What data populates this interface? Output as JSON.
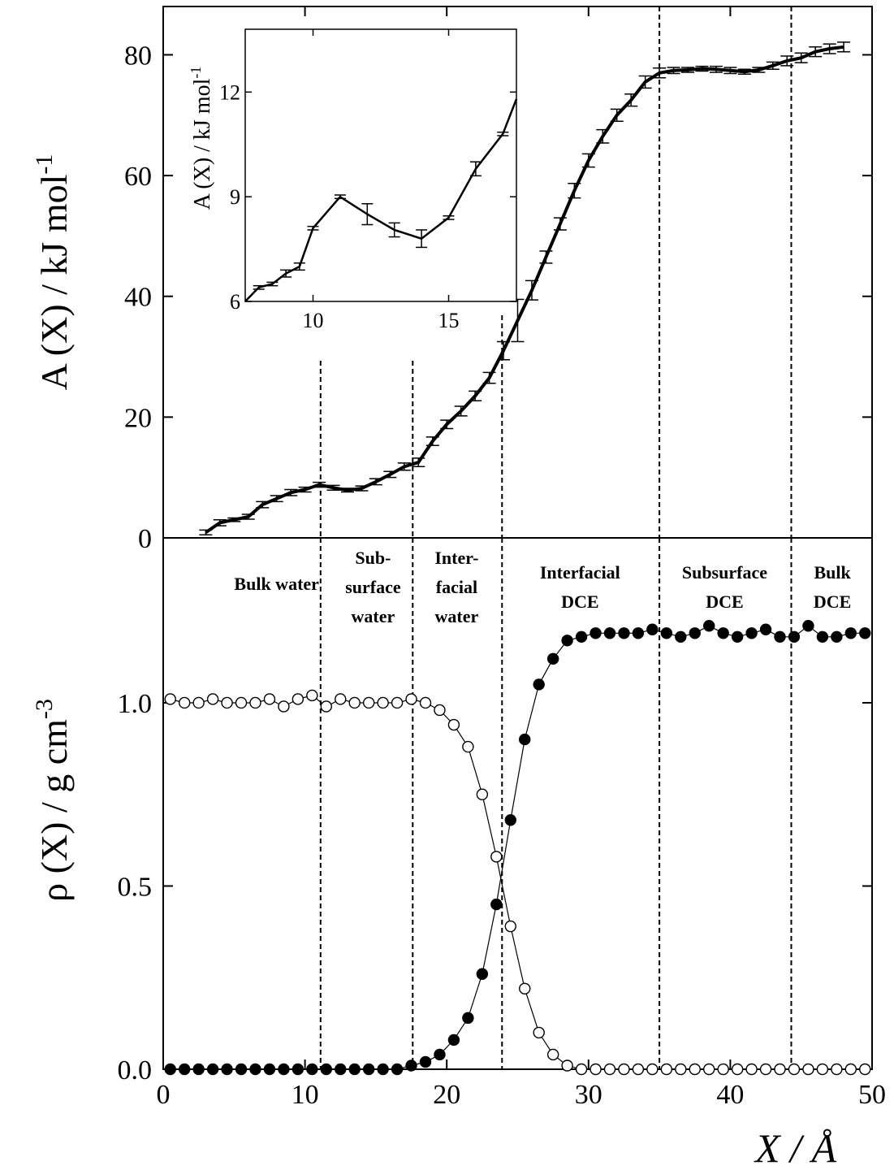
{
  "chart_data": [
    {
      "type": "line",
      "panel": "top",
      "ylabel": "A (X) / kJ mol",
      "ylabel_superscript": "-1",
      "xlim": [
        0,
        50
      ],
      "ylim": [
        0,
        88
      ],
      "yticks": [
        "0",
        "20",
        "40",
        "60",
        "80"
      ],
      "grid": false,
      "series": [
        {
          "x": [
            3,
            4,
            5,
            6,
            7,
            8,
            9,
            10,
            11,
            12,
            13,
            14,
            15,
            16,
            17,
            18,
            19,
            20,
            21,
            22,
            23,
            24,
            25,
            26,
            27,
            28,
            29,
            30,
            31,
            32,
            33,
            34,
            35,
            36,
            37,
            38,
            39,
            40,
            41,
            42,
            43,
            44,
            45,
            46,
            47,
            48
          ],
          "y": [
            0.9,
            2.5,
            3.0,
            3.5,
            5.5,
            6.5,
            7.5,
            8.0,
            8.8,
            8.3,
            7.9,
            8.2,
            9.3,
            10.5,
            11.8,
            12.5,
            16.0,
            18.8,
            21.0,
            23.5,
            26.5,
            31.0,
            36.0,
            41.0,
            46.5,
            52.0,
            57.5,
            62.5,
            66.5,
            70.0,
            72.5,
            75.5,
            77.0,
            77.4,
            77.5,
            77.7,
            77.6,
            77.4,
            77.2,
            77.5,
            78.2,
            79.0,
            79.5,
            80.5,
            81.0,
            81.3
          ],
          "err": [
            0.4,
            0.5,
            0.3,
            0.4,
            0.5,
            0.5,
            0.5,
            0.4,
            0.4,
            0.4,
            0.3,
            0.4,
            0.5,
            0.5,
            0.6,
            0.7,
            0.7,
            0.7,
            0.8,
            0.8,
            0.9,
            1.5,
            3.5,
            1.6,
            1.0,
            1.0,
            1.2,
            1.1,
            1.1,
            1.0,
            1.0,
            1.0,
            0.8,
            0.5,
            0.4,
            0.4,
            0.5,
            0.5,
            0.4,
            0.4,
            0.6,
            0.8,
            0.8,
            0.8,
            0.8,
            0.8
          ]
        }
      ]
    },
    {
      "type": "line",
      "panel": "inset",
      "ylabel": "A (X) / kJ mol",
      "ylabel_superscript": "-1",
      "xlim": [
        7.5,
        17.5
      ],
      "ylim": [
        6,
        13.8
      ],
      "xticks": [
        "10",
        "15"
      ],
      "yticks": [
        "6",
        "9",
        "12"
      ],
      "series": [
        {
          "x": [
            7.5,
            8.0,
            8.5,
            9.0,
            9.5,
            10.0,
            11.0,
            12.0,
            13.0,
            14.0,
            15.0,
            16.0,
            17.0,
            17.5
          ],
          "y": [
            6.0,
            6.4,
            6.5,
            6.8,
            7.0,
            8.1,
            9.0,
            8.5,
            8.05,
            7.8,
            8.4,
            9.8,
            10.8,
            11.8
          ],
          "err": [
            0.0,
            0.05,
            0.05,
            0.1,
            0.1,
            0.05,
            0.05,
            0.3,
            0.2,
            0.25,
            0.05,
            0.2,
            0.05,
            0.0
          ]
        }
      ]
    },
    {
      "type": "line",
      "panel": "bottom",
      "xlabel": "X / Å",
      "ylabel": "ρ (X) / g cm",
      "ylabel_superscript": "-3",
      "xlim": [
        0,
        50
      ],
      "ylim": [
        0,
        1.45
      ],
      "xticks": [
        "0",
        "10",
        "20",
        "30",
        "40",
        "50"
      ],
      "yticks": [
        "0.0",
        "0.5",
        "1.0"
      ],
      "region_labels": [
        {
          "x": 8.0,
          "lines": [
            "Bulk water"
          ]
        },
        {
          "x": 14.8,
          "lines": [
            "Sub-",
            "surface",
            "water"
          ]
        },
        {
          "x": 20.7,
          "lines": [
            "Inter-",
            "facial",
            "water"
          ]
        },
        {
          "x": 29.4,
          "lines": [
            "Interfacial",
            "DCE"
          ]
        },
        {
          "x": 39.6,
          "lines": [
            "Subsurface",
            "DCE"
          ]
        },
        {
          "x": 47.2,
          "lines": [
            "Bulk",
            "DCE"
          ]
        }
      ],
      "boundaries": [
        11.1,
        17.6,
        23.9,
        35.0,
        44.3
      ],
      "series": [
        {
          "marker": "open-circle",
          "x": [
            0.5,
            1.5,
            2.5,
            3.5,
            4.5,
            5.5,
            6.5,
            7.5,
            8.5,
            9.5,
            10.5,
            11.5,
            12.5,
            13.5,
            14.5,
            15.5,
            16.5,
            17.5,
            18.5,
            19.5,
            20.5,
            21.5,
            22.5,
            23.5,
            24.5,
            25.5,
            26.5,
            27.5,
            28.5,
            29.5,
            30.5,
            31.5,
            32.5,
            33.5,
            34.5,
            35.5,
            36.5,
            37.5,
            38.5,
            39.5,
            40.5,
            41.5,
            42.5,
            43.5,
            44.5,
            45.5,
            46.5,
            47.5,
            48.5,
            49.5
          ],
          "y": [
            1.01,
            1.0,
            1.0,
            1.01,
            1.0,
            1.0,
            1.0,
            1.01,
            0.99,
            1.01,
            1.02,
            0.99,
            1.01,
            1.0,
            1.0,
            1.0,
            1.0,
            1.01,
            1.0,
            0.98,
            0.94,
            0.88,
            0.75,
            0.58,
            0.39,
            0.22,
            0.1,
            0.04,
            0.01,
            0.0,
            0.0,
            0.0,
            0.0,
            0.0,
            0.0,
            0.0,
            0.0,
            0.0,
            0.0,
            0.0,
            0.0,
            0.0,
            0.0,
            0.0,
            0.0,
            0.0,
            0.0,
            0.0,
            0.0,
            0.0
          ]
        },
        {
          "marker": "filled-circle",
          "x": [
            0.5,
            1.5,
            2.5,
            3.5,
            4.5,
            5.5,
            6.5,
            7.5,
            8.5,
            9.5,
            10.5,
            11.5,
            12.5,
            13.5,
            14.5,
            15.5,
            16.5,
            17.5,
            18.5,
            19.5,
            20.5,
            21.5,
            22.5,
            23.5,
            24.5,
            25.5,
            26.5,
            27.5,
            28.5,
            29.5,
            30.5,
            31.5,
            32.5,
            33.5,
            34.5,
            35.5,
            36.5,
            37.5,
            38.5,
            39.5,
            40.5,
            41.5,
            42.5,
            43.5,
            44.5,
            45.5,
            46.5,
            47.5,
            48.5,
            49.5
          ],
          "y": [
            0.0,
            0.0,
            0.0,
            0.0,
            0.0,
            0.0,
            0.0,
            0.0,
            0.0,
            0.0,
            0.0,
            0.0,
            0.0,
            0.0,
            0.0,
            0.0,
            0.0,
            0.01,
            0.02,
            0.04,
            0.08,
            0.14,
            0.26,
            0.45,
            0.68,
            0.9,
            1.05,
            1.12,
            1.17,
            1.18,
            1.19,
            1.19,
            1.19,
            1.19,
            1.2,
            1.19,
            1.18,
            1.19,
            1.21,
            1.19,
            1.18,
            1.19,
            1.2,
            1.18,
            1.18,
            1.21,
            1.18,
            1.18,
            1.19,
            1.19
          ]
        }
      ]
    }
  ]
}
